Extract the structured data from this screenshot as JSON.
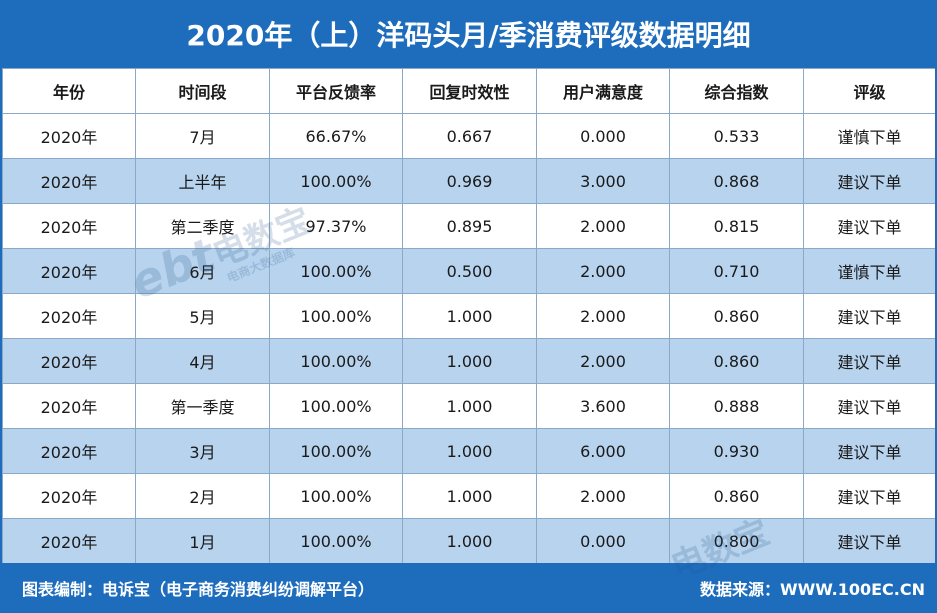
{
  "title": "2020年（上）洋码头月/季消费评级数据明细",
  "table": {
    "headers": [
      "年份",
      "时间段",
      "平台反馈率",
      "回复时效性",
      "用户满意度",
      "综合指数",
      "评级"
    ],
    "rows": [
      [
        "2020年",
        "7月",
        "66.67%",
        "0.667",
        "0.000",
        "0.533",
        "谨慎下单"
      ],
      [
        "2020年",
        "上半年",
        "100.00%",
        "0.969",
        "3.000",
        "0.868",
        "建议下单"
      ],
      [
        "2020年",
        "第二季度",
        "97.37%",
        "0.895",
        "2.000",
        "0.815",
        "建议下单"
      ],
      [
        "2020年",
        "6月",
        "100.00%",
        "0.500",
        "2.000",
        "0.710",
        "谨慎下单"
      ],
      [
        "2020年",
        "5月",
        "100.00%",
        "1.000",
        "2.000",
        "0.860",
        "建议下单"
      ],
      [
        "2020年",
        "4月",
        "100.00%",
        "1.000",
        "2.000",
        "0.860",
        "建议下单"
      ],
      [
        "2020年",
        "第一季度",
        "100.00%",
        "1.000",
        "3.600",
        "0.888",
        "建议下单"
      ],
      [
        "2020年",
        "3月",
        "100.00%",
        "1.000",
        "6.000",
        "0.930",
        "建议下单"
      ],
      [
        "2020年",
        "2月",
        "100.00%",
        "1.000",
        "2.000",
        "0.860",
        "建议下单"
      ],
      [
        "2020年",
        "1月",
        "100.00%",
        "1.000",
        "0.000",
        "0.800",
        "建议下单"
      ]
    ]
  },
  "watermark": {
    "logo_letters": "ebt",
    "brand": "电数宝",
    "tagline": "电商大数据库"
  },
  "footer": {
    "left": "图表编制：电诉宝（电子商务消费纠纷调解平台）",
    "right": "数据来源：WWW.100EC.CN"
  },
  "colors": {
    "frame": "#1e6dbd",
    "alt_row": "#b7d3ee",
    "border": "#8aa9c8"
  }
}
